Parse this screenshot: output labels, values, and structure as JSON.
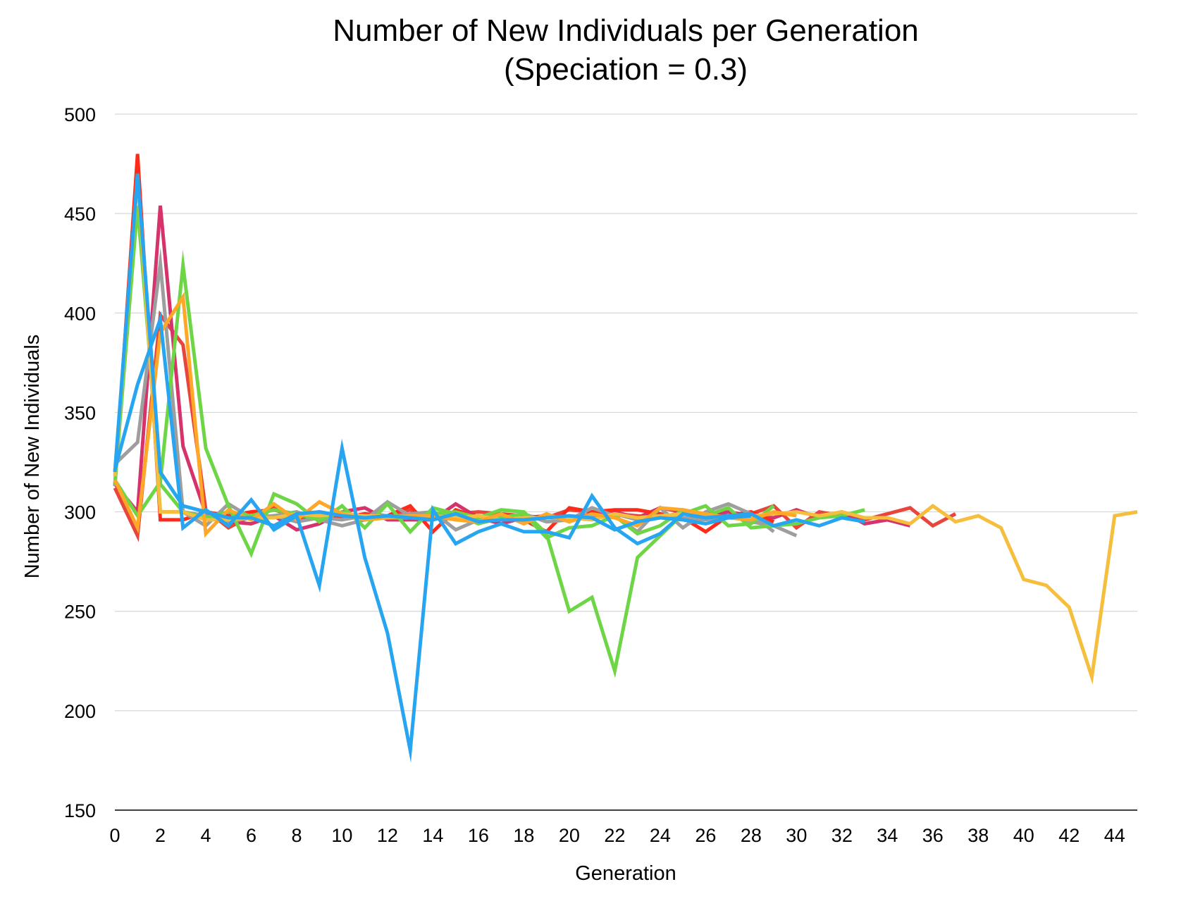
{
  "chart_data": {
    "type": "line",
    "title": "Number of New Individuals per Generation",
    "subtitle": "(Speciation = 0.3)",
    "xlabel": "Generation",
    "ylabel": "Number of New Individuals",
    "xlim": [
      0,
      45
    ],
    "ylim": [
      150,
      500
    ],
    "x_ticks": [
      0,
      2,
      4,
      6,
      8,
      10,
      12,
      14,
      16,
      18,
      20,
      22,
      24,
      26,
      28,
      30,
      32,
      34,
      36,
      38,
      40,
      42,
      44
    ],
    "y_ticks": [
      150,
      200,
      250,
      300,
      350,
      400,
      450,
      500
    ],
    "grid": "horizontal",
    "legend": "none",
    "series": [
      {
        "color": "#E8453C",
        "x_start": 0,
        "values": [
          312,
          288,
          399,
          384,
          301,
          292,
          298,
          302,
          296,
          300,
          298,
          297,
          298,
          301,
          296,
          299,
          300,
          299,
          298,
          297,
          301,
          300,
          299,
          298,
          297,
          300,
          299,
          298,
          299,
          303,
          292,
          300,
          298,
          296,
          299,
          302,
          293,
          299
        ]
      },
      {
        "color": "#D6336C",
        "x_start": 0,
        "values": [
          314,
          300,
          454,
          333,
          299,
          295,
          294,
          298,
          291,
          294,
          300,
          302,
          296,
          296,
          296,
          304,
          297,
          294,
          297,
          298,
          296,
          299,
          300,
          297,
          302,
          300,
          299,
          300,
          298,
          297,
          301,
          297,
          300,
          294,
          296,
          293
        ]
      },
      {
        "color": "#FF2A1A",
        "x_start": 0,
        "values": [
          313,
          480,
          296,
          296,
          300,
          298,
          300,
          301,
          298,
          298,
          297,
          299,
          298,
          303,
          290,
          301,
          297,
          299,
          296,
          290,
          302,
          300,
          301,
          301,
          299,
          297,
          290,
          298,
          300,
          295
        ]
      },
      {
        "color": "#9E9E9E",
        "x_start": 0,
        "values": [
          324,
          335,
          425,
          300,
          293,
          304,
          297,
          298,
          300,
          296,
          293,
          296,
          305,
          298,
          300,
          291,
          296,
          297,
          299,
          295,
          296,
          302,
          298,
          290,
          302,
          292,
          300,
          304,
          299,
          290
        ]
      },
      {
        "color": "#9E9E9E",
        "x_start": 0,
        "values": [
          313,
          469,
          300,
          300,
          298,
          295,
          297,
          298,
          295,
          297,
          296,
          298,
          297,
          299,
          300,
          296,
          297,
          298,
          296,
          297,
          298,
          297,
          299,
          296,
          298,
          297,
          296,
          298,
          295,
          293,
          288
        ]
      },
      {
        "color": "#6ED646",
        "x_start": 0,
        "values": [
          316,
          298,
          315,
          424,
          332,
          303,
          279,
          309,
          304,
          295,
          303,
          292,
          304,
          290,
          302,
          299,
          294,
          297,
          299,
          287,
          292,
          293,
          298,
          289,
          293,
          301,
          298,
          302,
          292,
          293,
          294,
          297,
          298,
          301
        ]
      },
      {
        "color": "#6ED646",
        "x_start": 0,
        "values": [
          314,
          454,
          314,
          300,
          297,
          300,
          298,
          301,
          299,
          296,
          300,
          296,
          297,
          297,
          299,
          300,
          297,
          301,
          300,
          289,
          250,
          257,
          220,
          277,
          288,
          299,
          303,
          293,
          294,
          303
        ]
      },
      {
        "color": "#F5BE3C",
        "x_start": 0,
        "values": [
          318,
          470,
          300,
          300,
          296,
          296,
          297,
          297,
          299,
          298,
          299,
          298,
          298,
          297,
          298,
          297,
          298,
          296,
          297,
          297,
          297,
          296,
          299,
          297,
          298,
          299,
          298,
          297,
          298,
          299,
          300,
          298,
          300,
          297,
          297,
          294,
          303,
          295,
          298,
          292,
          266,
          263,
          252,
          217,
          298,
          300
        ]
      },
      {
        "color": "#FFA726",
        "x_start": 0,
        "values": [
          316,
          292,
          390,
          408,
          289,
          301,
          296,
          304,
          296,
          305,
          299,
          296,
          297,
          298,
          298,
          296,
          295,
          299,
          294,
          299,
          295,
          299,
          297,
          293,
          302,
          301,
          299,
          297,
          296,
          300,
          298
        ]
      },
      {
        "color": "#27A5F0",
        "x_start": 0,
        "values": [
          321,
          364,
          397,
          292,
          301,
          293,
          306,
          291,
          298,
          263,
          332,
          277,
          239,
          180,
          301,
          284,
          290,
          294,
          290,
          290,
          287,
          308,
          292,
          284,
          289,
          299,
          297,
          298,
          299,
          293,
          296,
          293,
          297,
          295
        ]
      },
      {
        "color": "#27A5F0",
        "x_start": 0,
        "values": [
          320,
          470,
          320,
          303,
          300,
          297,
          297,
          293,
          299,
          300,
          298,
          297,
          298,
          297,
          296,
          299,
          295,
          296,
          296,
          297,
          298,
          297,
          291,
          295,
          297,
          296,
          294,
          297,
          298
        ]
      }
    ]
  }
}
